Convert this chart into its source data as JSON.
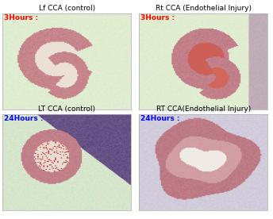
{
  "titles": [
    "Lf CCA (control)",
    "Rt CCA (Endothelial Injury)",
    "LT CCA (control)",
    "RT CCA(Endothelial Injury)"
  ],
  "time_labels": [
    "3Hours :",
    "3Hours :",
    "24Hours :",
    "24Hours :"
  ],
  "time_colors": [
    "red",
    "red",
    "blue",
    "blue"
  ],
  "background_color": "#ffffff",
  "title_fontsize": 6.5,
  "label_fontsize": 6.5,
  "fig_width": 3.44,
  "fig_height": 2.76
}
